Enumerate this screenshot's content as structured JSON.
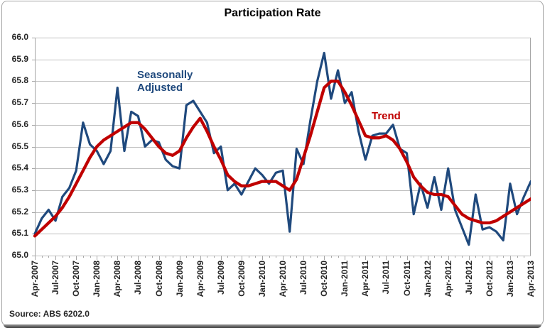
{
  "title": "Participation Rate",
  "source": "Source: ABS 6202.0",
  "annotations": {
    "seasonally_adjusted_line1": "Seasonally",
    "seasonally_adjusted_line2": "Adjusted",
    "trend": "Trend"
  },
  "colors": {
    "seasonally_adjusted": "#1f497d",
    "trend": "#c00000",
    "gridline": "#bfbfbf",
    "axis": "#a6a6a6",
    "axis_text": "#262626",
    "title_text": "#000000"
  },
  "chart_data": {
    "type": "line",
    "title": "Participation Rate",
    "grid": "horizontal",
    "y_axis": {
      "min": 65.0,
      "max": 66.0,
      "step": 0.1,
      "tick_labels": [
        "66.0",
        "65.9",
        "65.8",
        "65.7",
        "65.6",
        "65.5",
        "65.4",
        "65.3",
        "65.2",
        "65.1",
        "65.0"
      ]
    },
    "x_axis": {
      "unit": "month",
      "start": "Apr-2007",
      "end": "Apr-2013",
      "months": 73,
      "tick_labels": [
        "Apr-2007",
        "Jul-2007",
        "Oct-2007",
        "Jan-2008",
        "Apr-2008",
        "Jul-2008",
        "Oct-2008",
        "Jan-2009",
        "Apr-2009",
        "Jul-2009",
        "Oct-2009",
        "Jan-2010",
        "Apr-2010",
        "Jul-2010",
        "Oct-2010",
        "Jan-2011",
        "Apr-2011",
        "Jul-2011",
        "Oct-2011",
        "Jan-2012",
        "Apr-2012",
        "Jul-2012",
        "Oct-2012",
        "Jan-2013",
        "Apr-2013"
      ]
    },
    "series": [
      {
        "name": "Seasonally Adjusted",
        "color": "#1f497d",
        "values": [
          65.1,
          65.17,
          65.21,
          65.16,
          65.27,
          65.31,
          65.39,
          65.61,
          65.51,
          65.48,
          65.42,
          65.48,
          65.77,
          65.48,
          65.66,
          65.64,
          65.5,
          65.53,
          65.52,
          65.44,
          65.41,
          65.4,
          65.69,
          65.71,
          65.66,
          65.61,
          65.47,
          65.5,
          65.3,
          65.33,
          65.28,
          65.34,
          65.4,
          65.37,
          65.33,
          65.38,
          65.39,
          65.11,
          65.49,
          65.42,
          65.62,
          65.8,
          65.93,
          65.72,
          65.85,
          65.7,
          65.75,
          65.57,
          65.44,
          65.55,
          65.56,
          65.56,
          65.6,
          65.49,
          65.47,
          65.19,
          65.33,
          65.22,
          65.36,
          65.21,
          65.4,
          65.21,
          65.13,
          65.05,
          65.28,
          65.12,
          65.13,
          65.11,
          65.07,
          65.33,
          65.19,
          65.27,
          65.34
        ]
      },
      {
        "name": "Trend",
        "color": "#c00000",
        "values": [
          65.09,
          65.12,
          65.15,
          65.18,
          65.22,
          65.27,
          65.33,
          65.39,
          65.45,
          65.5,
          65.53,
          65.55,
          65.57,
          65.59,
          65.61,
          65.61,
          65.58,
          65.54,
          65.5,
          65.47,
          65.46,
          65.48,
          65.54,
          65.59,
          65.63,
          65.57,
          65.5,
          65.44,
          65.37,
          65.34,
          65.32,
          65.32,
          65.33,
          65.34,
          65.34,
          65.34,
          65.32,
          65.3,
          65.35,
          65.45,
          65.55,
          65.66,
          65.77,
          65.8,
          65.8,
          65.75,
          65.69,
          65.62,
          65.55,
          65.54,
          65.54,
          65.55,
          65.53,
          65.49,
          65.43,
          65.36,
          65.32,
          65.29,
          65.28,
          65.28,
          65.27,
          65.23,
          65.19,
          65.17,
          65.16,
          65.15,
          65.15,
          65.16,
          65.18,
          65.2,
          65.22,
          65.24,
          65.26
        ]
      }
    ]
  }
}
